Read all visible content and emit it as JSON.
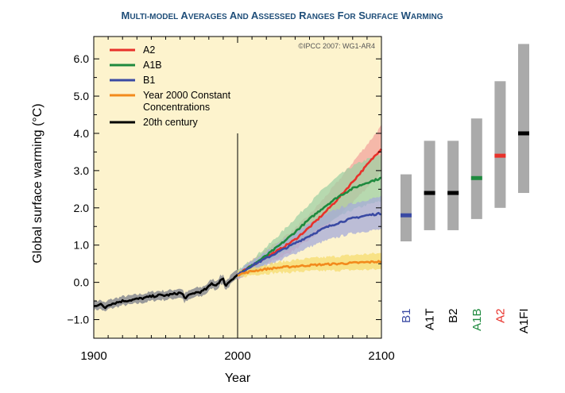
{
  "chart_data": {
    "type": "line",
    "title": "Multi-Model Averages and Assessed Ranges for Surface Warming",
    "xlabel": "Year",
    "ylabel": "Global surface warming (°C)",
    "copyright": "©IPCC 2007: WG1-AR4",
    "xlim": [
      1900,
      2100
    ],
    "ylim": [
      -1.5,
      6.6
    ],
    "x_ticks": [
      1900,
      2000,
      2100
    ],
    "x_tick_labels": [
      "1900",
      "2000",
      "2100"
    ],
    "y_ticks": [
      -1.0,
      0.0,
      1.0,
      2.0,
      3.0,
      4.0,
      5.0,
      6.0
    ],
    "y_tick_labels": [
      "−1.0",
      "0.0",
      "1.0",
      "2.0",
      "3.0",
      "4.0",
      "5.0",
      "6.0"
    ],
    "divider_year": 2000,
    "colors": {
      "background": "#fdf3cd",
      "band_grey": "#aaaaaa",
      "A2": "#e8312a",
      "A1B": "#1e8a3e",
      "B1": "#3a4aa3",
      "constant": "#f28a1c",
      "century": "#000000",
      "title": "#1f4e79"
    },
    "legend": {
      "position": "top-left",
      "entries": [
        {
          "key": "A2",
          "label": "A2",
          "color": "#e8312a"
        },
        {
          "key": "A1B",
          "label": "A1B",
          "color": "#1e8a3e"
        },
        {
          "key": "B1",
          "label": "B1",
          "color": "#3a4aa3"
        },
        {
          "key": "constant",
          "label_lines": [
            "Year 2000 Constant",
            "Concentrations"
          ],
          "color": "#f28a1c"
        },
        {
          "key": "century",
          "label": "20th century",
          "color": "#000000"
        }
      ]
    },
    "series": [
      {
        "key": "century",
        "name": "20th century",
        "color": "#000000",
        "band_color": "#9a9a9a",
        "x": [
          1900,
          1905,
          1908,
          1910,
          1915,
          1920,
          1925,
          1930,
          1935,
          1940,
          1945,
          1950,
          1955,
          1960,
          1962,
          1963,
          1965,
          1970,
          1975,
          1978,
          1980,
          1982,
          1985,
          1988,
          1990,
          1991,
          1992,
          1995,
          1998,
          2000
        ],
        "y": [
          -0.62,
          -0.6,
          -0.68,
          -0.6,
          -0.55,
          -0.5,
          -0.48,
          -0.45,
          -0.42,
          -0.38,
          -0.35,
          -0.35,
          -0.32,
          -0.28,
          -0.33,
          -0.42,
          -0.38,
          -0.28,
          -0.25,
          -0.18,
          -0.12,
          -0.03,
          -0.08,
          0.05,
          0.08,
          -0.02,
          -0.08,
          0.05,
          0.15,
          0.2
        ],
        "band": 0.12
      },
      {
        "key": "B1",
        "name": "B1",
        "color": "#3a4aa3",
        "band_color": "#a5abd8",
        "x": [
          2000,
          2010,
          2020,
          2030,
          2040,
          2050,
          2060,
          2070,
          2080,
          2090,
          2100
        ],
        "y": [
          0.2,
          0.45,
          0.65,
          0.85,
          1.05,
          1.25,
          1.45,
          1.6,
          1.72,
          1.8,
          1.85
        ],
        "band_lo": [
          0.1,
          0.3,
          0.45,
          0.6,
          0.78,
          0.95,
          1.1,
          1.22,
          1.32,
          1.38,
          1.42
        ],
        "band_hi": [
          0.3,
          0.58,
          0.82,
          1.08,
          1.35,
          1.58,
          1.8,
          1.98,
          2.12,
          2.22,
          2.3
        ]
      },
      {
        "key": "A1B",
        "name": "A1B",
        "color": "#1e8a3e",
        "band_color": "#9fd0a4",
        "x": [
          2000,
          2010,
          2020,
          2030,
          2040,
          2050,
          2060,
          2070,
          2080,
          2090,
          2100
        ],
        "y": [
          0.2,
          0.45,
          0.72,
          1.02,
          1.35,
          1.7,
          2.02,
          2.3,
          2.52,
          2.68,
          2.8
        ],
        "band_lo": [
          0.1,
          0.3,
          0.52,
          0.75,
          1.0,
          1.28,
          1.52,
          1.75,
          1.95,
          2.08,
          2.18
        ],
        "band_hi": [
          0.3,
          0.62,
          0.95,
          1.32,
          1.72,
          2.12,
          2.52,
          2.85,
          3.12,
          3.3,
          3.42
        ]
      },
      {
        "key": "A2",
        "name": "A2",
        "color": "#e8312a",
        "band_color": "#f2a49c",
        "x": [
          2000,
          2010,
          2020,
          2030,
          2040,
          2050,
          2060,
          2070,
          2080,
          2090,
          2100
        ],
        "y": [
          0.2,
          0.45,
          0.68,
          0.9,
          1.15,
          1.48,
          1.85,
          2.25,
          2.7,
          3.15,
          3.6
        ],
        "band_lo": [
          0.1,
          0.3,
          0.5,
          0.68,
          0.88,
          1.15,
          1.45,
          1.78,
          2.15,
          2.55,
          2.95
        ],
        "band_hi": [
          0.3,
          0.6,
          0.88,
          1.15,
          1.45,
          1.82,
          2.25,
          2.72,
          3.22,
          3.7,
          4.2
        ]
      },
      {
        "key": "constant",
        "name": "Year 2000 Constant Concentrations",
        "color": "#f28a1c",
        "band_color": "#f5dc6e",
        "x": [
          2000,
          2010,
          2020,
          2030,
          2040,
          2050,
          2060,
          2070,
          2080,
          2090,
          2100
        ],
        "y": [
          0.2,
          0.3,
          0.36,
          0.4,
          0.43,
          0.46,
          0.48,
          0.5,
          0.52,
          0.54,
          0.56
        ],
        "band_lo": [
          0.12,
          0.2,
          0.24,
          0.26,
          0.28,
          0.3,
          0.31,
          0.32,
          0.33,
          0.34,
          0.35
        ],
        "band_hi": [
          0.28,
          0.4,
          0.48,
          0.55,
          0.6,
          0.64,
          0.67,
          0.7,
          0.73,
          0.76,
          0.78
        ]
      }
    ],
    "ranges": [
      {
        "scenario": "B1",
        "low": 1.1,
        "high": 2.9,
        "best": 1.8,
        "color": "#3a4aa3"
      },
      {
        "scenario": "A1T",
        "low": 1.4,
        "high": 3.8,
        "best": 2.4,
        "color": "#000000"
      },
      {
        "scenario": "B2",
        "low": 1.4,
        "high": 3.8,
        "best": 2.4,
        "color": "#000000"
      },
      {
        "scenario": "A1B",
        "low": 1.7,
        "high": 4.4,
        "best": 2.8,
        "color": "#1e8a3e"
      },
      {
        "scenario": "A2",
        "low": 2.0,
        "high": 5.4,
        "best": 3.4,
        "color": "#e8312a"
      },
      {
        "scenario": "A1FI",
        "low": 2.4,
        "high": 6.4,
        "best": 4.0,
        "color": "#000000"
      }
    ]
  }
}
